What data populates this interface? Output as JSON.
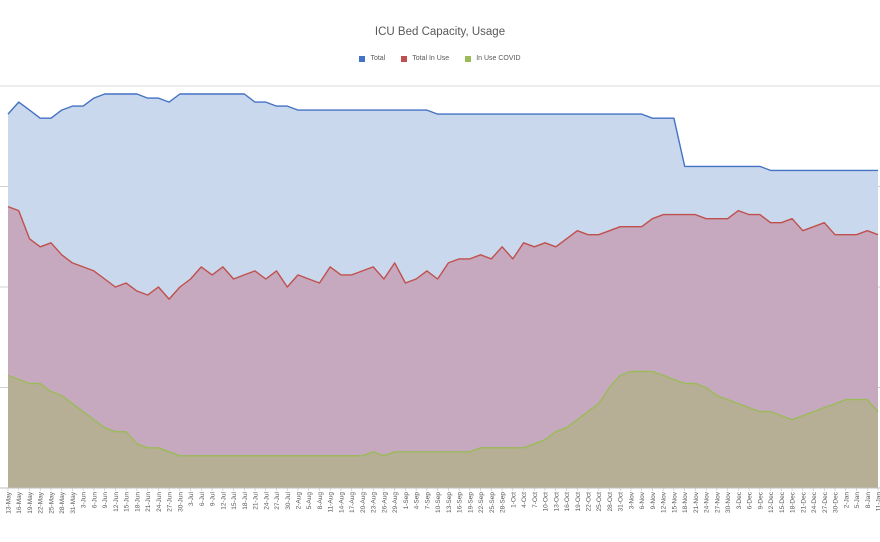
{
  "chart_data": {
    "type": "area",
    "title": "ICU Bed Capacity, Usage",
    "xlabel": "",
    "ylabel": "",
    "grid": true,
    "legend_position": "top-center",
    "x_tick_labels": [
      "13-May",
      "16-May",
      "19-May",
      "22-May",
      "25-May",
      "28-May",
      "31-May",
      "3-Jun",
      "6-Jun",
      "9-Jun",
      "12-Jun",
      "15-Jun",
      "18-Jun",
      "21-Jun",
      "24-Jun",
      "27-Jun",
      "30-Jun",
      "3-Jul",
      "6-Jul",
      "9-Jul",
      "12-Jul",
      "15-Jul",
      "18-Jul",
      "21-Jul",
      "24-Jul",
      "27-Jul",
      "30-Jul",
      "2-Aug",
      "5-Aug",
      "8-Aug",
      "11-Aug",
      "14-Aug",
      "17-Aug",
      "20-Aug",
      "23-Aug",
      "26-Aug",
      "29-Aug",
      "1-Sep",
      "4-Sep",
      "7-Sep",
      "10-Sep",
      "13-Sep",
      "16-Sep",
      "19-Sep",
      "22-Sep",
      "25-Sep",
      "28-Sep",
      "1-Oct",
      "4-Oct",
      "7-Oct",
      "10-Oct",
      "13-Oct",
      "16-Oct",
      "19-Oct",
      "22-Oct",
      "25-Oct",
      "28-Oct",
      "31-Oct",
      "3-Nov",
      "6-Nov",
      "9-Nov",
      "12-Nov",
      "15-Nov",
      "18-Nov",
      "21-Nov",
      "24-Nov",
      "27-Nov",
      "30-Nov",
      "3-Dec",
      "6-Dec",
      "9-Dec",
      "12-Dec",
      "15-Dec",
      "18-Dec",
      "21-Dec",
      "24-Dec",
      "27-Dec",
      "30-Dec",
      "2-Jan",
      "5-Jan",
      "8-Jan",
      "11-Jan"
    ],
    "ylim": [
      0,
      100
    ],
    "series": [
      {
        "name": "Total",
        "color": "#4472C4",
        "fill": "#C9D8EC",
        "x": [
          "13-May",
          "16-May",
          "19-May",
          "22-May",
          "25-May",
          "28-May",
          "31-May",
          "3-Jun",
          "6-Jun",
          "9-Jun",
          "12-Jun",
          "15-Jun",
          "18-Jun",
          "21-Jun",
          "24-Jun",
          "27-Jun",
          "30-Jun",
          "3-Jul",
          "6-Jul",
          "9-Jul",
          "12-Jul",
          "15-Jul",
          "18-Jul",
          "21-Jul",
          "24-Jul",
          "27-Jul",
          "30-Jul",
          "2-Aug",
          "5-Aug",
          "8-Aug",
          "11-Aug",
          "14-Aug",
          "17-Aug",
          "20-Aug",
          "23-Aug",
          "26-Aug",
          "29-Aug",
          "1-Sep",
          "4-Sep",
          "7-Sep",
          "10-Sep",
          "13-Sep",
          "16-Sep",
          "19-Sep",
          "22-Sep",
          "25-Sep",
          "28-Sep",
          "1-Oct",
          "4-Oct",
          "7-Oct",
          "10-Oct",
          "13-Oct",
          "16-Oct",
          "19-Oct",
          "22-Oct",
          "25-Oct",
          "28-Oct",
          "31-Oct",
          "3-Nov",
          "6-Nov",
          "9-Nov",
          "12-Nov",
          "15-Nov",
          "18-Nov",
          "21-Nov",
          "24-Nov",
          "27-Nov",
          "30-Nov",
          "3-Dec",
          "6-Dec",
          "9-Dec",
          "12-Dec",
          "15-Dec",
          "18-Dec",
          "21-Dec",
          "24-Dec",
          "27-Dec",
          "30-Dec",
          "2-Jan",
          "5-Jan",
          "8-Jan",
          "11-Jan"
        ],
        "values": [
          93,
          96,
          94,
          92,
          92,
          94,
          95,
          95,
          97,
          98,
          98,
          98,
          98,
          97,
          97,
          96,
          98,
          98,
          98,
          98,
          98,
          98,
          98,
          96,
          96,
          95,
          95,
          94,
          94,
          94,
          94,
          94,
          94,
          94,
          94,
          94,
          94,
          94,
          94,
          94,
          93,
          93,
          93,
          93,
          93,
          93,
          93,
          93,
          93,
          93,
          93,
          93,
          93,
          93,
          93,
          93,
          93,
          93,
          93,
          93,
          92,
          92,
          92,
          80,
          80,
          80,
          80,
          80,
          80,
          80,
          80,
          79,
          79,
          79,
          79,
          79,
          79,
          79,
          79,
          79,
          79,
          79
        ]
      },
      {
        "name": "Total In Use",
        "color": "#C0504D",
        "fill": "#C6A9BE",
        "x": [
          "13-May",
          "16-May",
          "19-May",
          "22-May",
          "25-May",
          "28-May",
          "31-May",
          "3-Jun",
          "6-Jun",
          "9-Jun",
          "12-Jun",
          "15-Jun",
          "18-Jun",
          "21-Jun",
          "24-Jun",
          "27-Jun",
          "30-Jun",
          "3-Jul",
          "6-Jul",
          "9-Jul",
          "12-Jul",
          "15-Jul",
          "18-Jul",
          "21-Jul",
          "24-Jul",
          "27-Jul",
          "30-Jul",
          "2-Aug",
          "5-Aug",
          "8-Aug",
          "11-Aug",
          "14-Aug",
          "17-Aug",
          "20-Aug",
          "23-Aug",
          "26-Aug",
          "29-Aug",
          "1-Sep",
          "4-Sep",
          "7-Sep",
          "10-Sep",
          "13-Sep",
          "16-Sep",
          "19-Sep",
          "22-Sep",
          "25-Sep",
          "28-Sep",
          "1-Oct",
          "4-Oct",
          "7-Oct",
          "10-Oct",
          "13-Oct",
          "16-Oct",
          "19-Oct",
          "22-Oct",
          "25-Oct",
          "28-Oct",
          "31-Oct",
          "3-Nov",
          "6-Nov",
          "9-Nov",
          "12-Nov",
          "15-Nov",
          "18-Nov",
          "21-Nov",
          "24-Nov",
          "27-Nov",
          "30-Nov",
          "3-Dec",
          "6-Dec",
          "9-Dec",
          "12-Dec",
          "15-Dec",
          "18-Dec",
          "21-Dec",
          "24-Dec",
          "27-Dec",
          "30-Dec",
          "2-Jan",
          "5-Jan",
          "8-Jan",
          "11-Jan"
        ],
        "values": [
          70,
          69,
          62,
          60,
          61,
          58,
          56,
          55,
          54,
          52,
          50,
          51,
          49,
          48,
          50,
          47,
          50,
          52,
          55,
          53,
          55,
          52,
          53,
          54,
          52,
          54,
          50,
          53,
          52,
          51,
          55,
          53,
          53,
          54,
          55,
          52,
          56,
          51,
          52,
          54,
          52,
          56,
          57,
          57,
          58,
          57,
          60,
          57,
          61,
          60,
          61,
          60,
          62,
          64,
          63,
          63,
          64,
          65,
          65,
          65,
          67,
          68,
          68,
          68,
          68,
          67,
          67,
          67,
          69,
          68,
          68,
          66,
          66,
          67,
          64,
          65,
          66,
          63,
          63,
          63,
          64,
          63
        ]
      },
      {
        "name": "In Use COVID",
        "color": "#9BBB59",
        "fill": "#B7AE96",
        "x": [
          "13-May",
          "16-May",
          "19-May",
          "22-May",
          "25-May",
          "28-May",
          "31-May",
          "3-Jun",
          "6-Jun",
          "9-Jun",
          "12-Jun",
          "15-Jun",
          "18-Jun",
          "21-Jun",
          "24-Jun",
          "27-Jun",
          "30-Jun",
          "3-Jul",
          "6-Jul",
          "9-Jul",
          "12-Jul",
          "15-Jul",
          "18-Jul",
          "21-Jul",
          "24-Jul",
          "27-Jul",
          "30-Jul",
          "2-Aug",
          "5-Aug",
          "8-Aug",
          "11-Aug",
          "14-Aug",
          "17-Aug",
          "20-Aug",
          "23-Aug",
          "26-Aug",
          "29-Aug",
          "1-Sep",
          "4-Sep",
          "7-Sep",
          "10-Sep",
          "13-Sep",
          "16-Sep",
          "19-Sep",
          "22-Sep",
          "25-Sep",
          "28-Sep",
          "1-Oct",
          "4-Oct",
          "7-Oct",
          "10-Oct",
          "13-Oct",
          "16-Oct",
          "19-Oct",
          "22-Oct",
          "25-Oct",
          "28-Oct",
          "31-Oct",
          "3-Nov",
          "6-Nov",
          "9-Nov",
          "12-Nov",
          "15-Nov",
          "18-Nov",
          "21-Nov",
          "24-Nov",
          "27-Nov",
          "30-Nov",
          "3-Dec",
          "6-Dec",
          "9-Dec",
          "12-Dec",
          "15-Dec",
          "18-Dec",
          "21-Dec",
          "24-Dec",
          "27-Dec",
          "30-Dec",
          "2-Jan",
          "5-Jan",
          "8-Jan",
          "11-Jan"
        ],
        "values": [
          28,
          27,
          26,
          26,
          24,
          23,
          21,
          19,
          17,
          15,
          14,
          14,
          11,
          10,
          10,
          9,
          8,
          8,
          8,
          8,
          8,
          8,
          8,
          8,
          8,
          8,
          8,
          8,
          8,
          8,
          8,
          8,
          8,
          8,
          9,
          8,
          9,
          9,
          9,
          9,
          9,
          9,
          9,
          9,
          10,
          10,
          10,
          10,
          10,
          11,
          12,
          14,
          15,
          17,
          19,
          21,
          25,
          28,
          29,
          29,
          29,
          28,
          27,
          26,
          26,
          25,
          23,
          22,
          21,
          20,
          19,
          19,
          18,
          17,
          18,
          19,
          20,
          21,
          22,
          22,
          22,
          19
        ]
      }
    ]
  }
}
